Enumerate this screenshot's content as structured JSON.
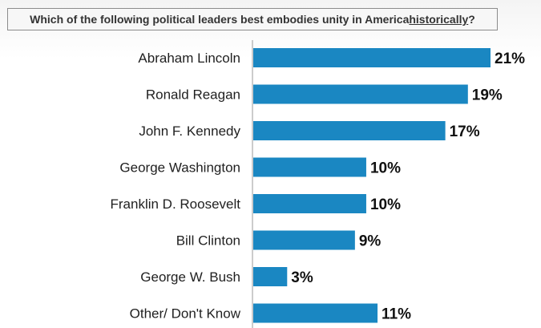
{
  "question": {
    "prefix": "Which of the following political leaders best embodies unity in America ",
    "highlight": "historically",
    "suffix": "?"
  },
  "colors": {
    "bar": "#1a87c2",
    "axis": "#9a9a9a"
  },
  "chart_data": {
    "type": "bar",
    "orientation": "horizontal",
    "categories": [
      "Abraham Lincoln",
      "Ronald Reagan",
      "John F. Kennedy",
      "George Washington",
      "Franklin D. Roosevelt",
      "Bill Clinton",
      "George W. Bush",
      "Other/ Don't Know"
    ],
    "values": [
      21,
      19,
      17,
      10,
      10,
      9,
      3,
      11
    ],
    "value_labels": [
      "21%",
      "19%",
      "17%",
      "10%",
      "10%",
      "9%",
      "3%",
      "11%"
    ],
    "xlim": [
      0,
      21
    ],
    "grid": false,
    "legend": "none"
  }
}
